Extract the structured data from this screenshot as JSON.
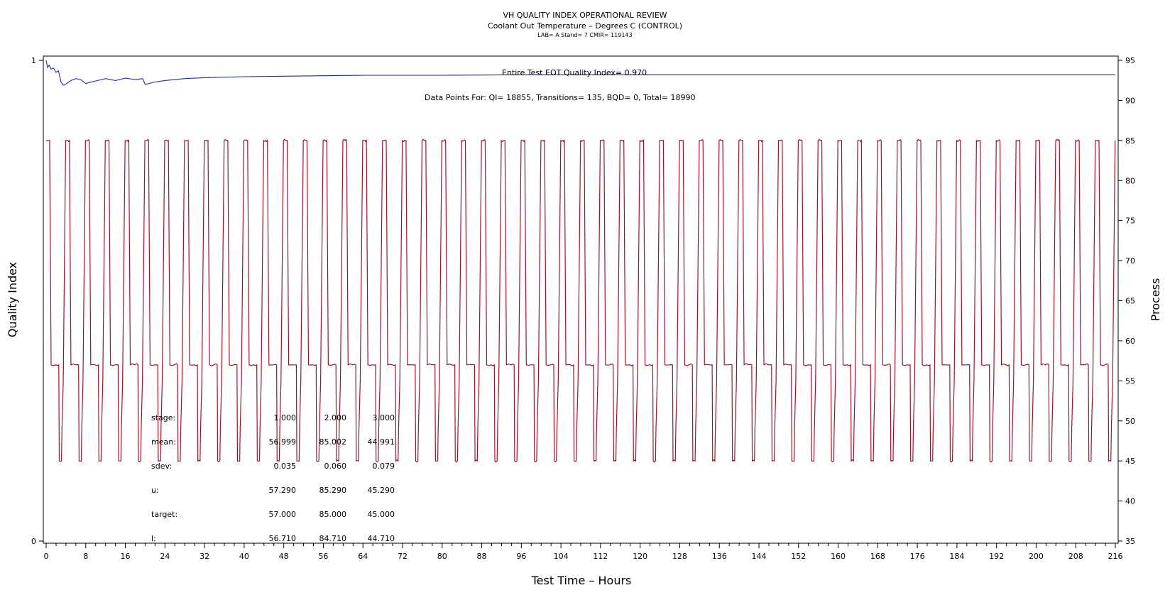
{
  "chart_data": {
    "type": "line",
    "title": "VH QUALITY INDEX OPERATIONAL REVIEW",
    "subtitle": "Coolant Out Temperature – Degrees C (CONTROL)",
    "info": "LAB= A Stand= 7 CMIR= 119143",
    "xlabel": "Test Time – Hours",
    "ylabel_left": "Quality Index",
    "ylabel_right": "Process",
    "xlim": [
      0,
      216
    ],
    "x_ticks": [
      0,
      8,
      16,
      24,
      32,
      40,
      48,
      56,
      64,
      72,
      80,
      88,
      96,
      104,
      112,
      120,
      128,
      136,
      144,
      152,
      160,
      168,
      176,
      184,
      192,
      200,
      208,
      216
    ],
    "ylim_left": [
      0,
      1
    ],
    "y_ticks_left": [
      0,
      1
    ],
    "ylim_right": [
      35,
      95
    ],
    "y_ticks_right": [
      35,
      40,
      45,
      50,
      55,
      60,
      65,
      70,
      75,
      80,
      85,
      90,
      95
    ],
    "grid": false,
    "annotations": {
      "quality_index": "Entire Test EOT Quality Index=   0.970",
      "data_points": "Data Points For: QI= 18855, Transitions=   135, BQD=     0, Total= 18990"
    },
    "stats_table": {
      "rows": [
        {
          "label": "stage:",
          "values": [
            "1.000",
            "2.000",
            "3.000"
          ]
        },
        {
          "label": "mean:",
          "values": [
            "56.999",
            "85.002",
            "44.991"
          ]
        },
        {
          "label": "sdev:",
          "values": [
            "0.035",
            "0.060",
            "0.079"
          ]
        },
        {
          "label": "u:",
          "values": [
            "57.290",
            "85.290",
            "45.290"
          ]
        },
        {
          "label": "target:",
          "values": [
            "57.000",
            "85.000",
            "45.000"
          ]
        },
        {
          "label": "l:",
          "values": [
            "56.710",
            "84.710",
            "44.710"
          ]
        }
      ]
    },
    "process_series": {
      "color": "#a0122a",
      "stage_targets": [
        57,
        85,
        45
      ],
      "cycle_hours": 4,
      "cycle_count": 54
    },
    "quality_series": {
      "color": "#1f2a9a",
      "x": [
        0,
        0.3,
        0.6,
        1,
        1.5,
        2,
        2.5,
        3,
        3.5,
        4,
        5,
        6,
        7,
        8,
        10,
        12,
        14,
        16,
        18,
        19.5,
        20,
        22,
        24,
        28,
        32,
        40,
        48,
        56,
        64,
        72,
        80,
        96,
        112,
        128,
        144,
        160,
        176,
        192,
        208,
        216
      ],
      "y": [
        1.0,
        0.985,
        0.99,
        0.982,
        0.984,
        0.975,
        0.978,
        0.955,
        0.948,
        0.951,
        0.958,
        0.962,
        0.96,
        0.952,
        0.957,
        0.962,
        0.958,
        0.963,
        0.96,
        0.962,
        0.95,
        0.955,
        0.958,
        0.962,
        0.964,
        0.966,
        0.967,
        0.968,
        0.969,
        0.969,
        0.969,
        0.97,
        0.97,
        0.97,
        0.97,
        0.97,
        0.97,
        0.97,
        0.97,
        0.97
      ]
    }
  }
}
